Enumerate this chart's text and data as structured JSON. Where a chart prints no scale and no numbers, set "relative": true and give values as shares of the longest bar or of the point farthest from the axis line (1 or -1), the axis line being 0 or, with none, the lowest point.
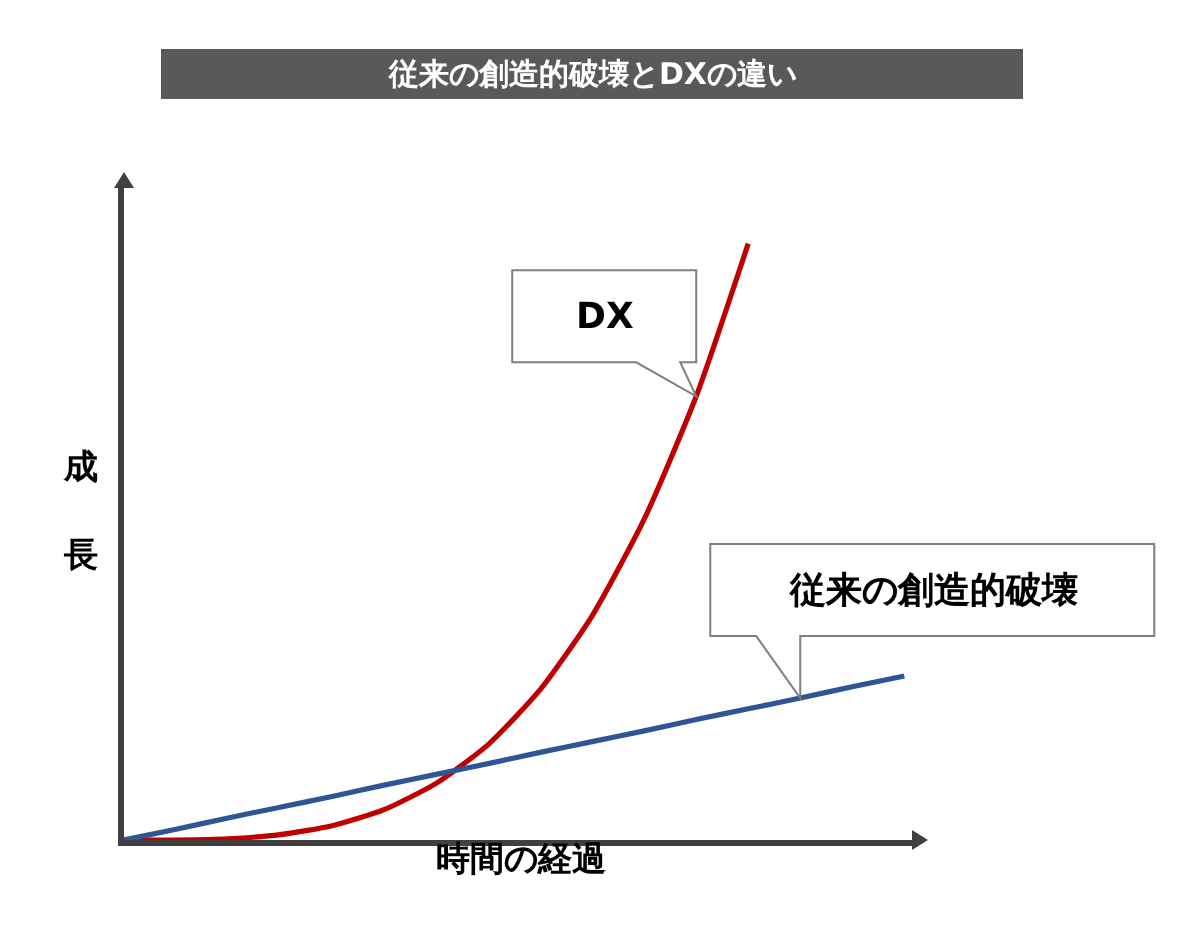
{
  "chart_data": {
    "type": "line",
    "title": "従来の創造的破壊とDXの違い",
    "xlabel": "時間の経過",
    "ylabel": "成長",
    "relative": true,
    "legend": false,
    "grid": false,
    "marker": "none",
    "line_style": "solid",
    "categories": [
      null,
      null,
      null,
      null,
      null,
      null,
      null,
      null,
      null,
      null,
      null,
      null,
      null,
      null,
      null,
      null
    ],
    "series": [
      {
        "name": "DX",
        "color": "#c00000",
        "values": [
          0,
          0,
          0.002,
          0.009,
          0.024,
          0.051,
          0.095,
          0.16,
          0.252,
          0.376,
          0.538,
          0.744,
          1,
          null,
          null,
          null
        ]
      },
      {
        "name": "従来の創造的破壊",
        "color": "#2f5597",
        "values": [
          0,
          0.018,
          0.037,
          0.055,
          0.073,
          0.092,
          0.11,
          0.128,
          0.147,
          0.165,
          0.183,
          0.202,
          0.22,
          0.238,
          0.257,
          0.275
        ]
      }
    ]
  }
}
